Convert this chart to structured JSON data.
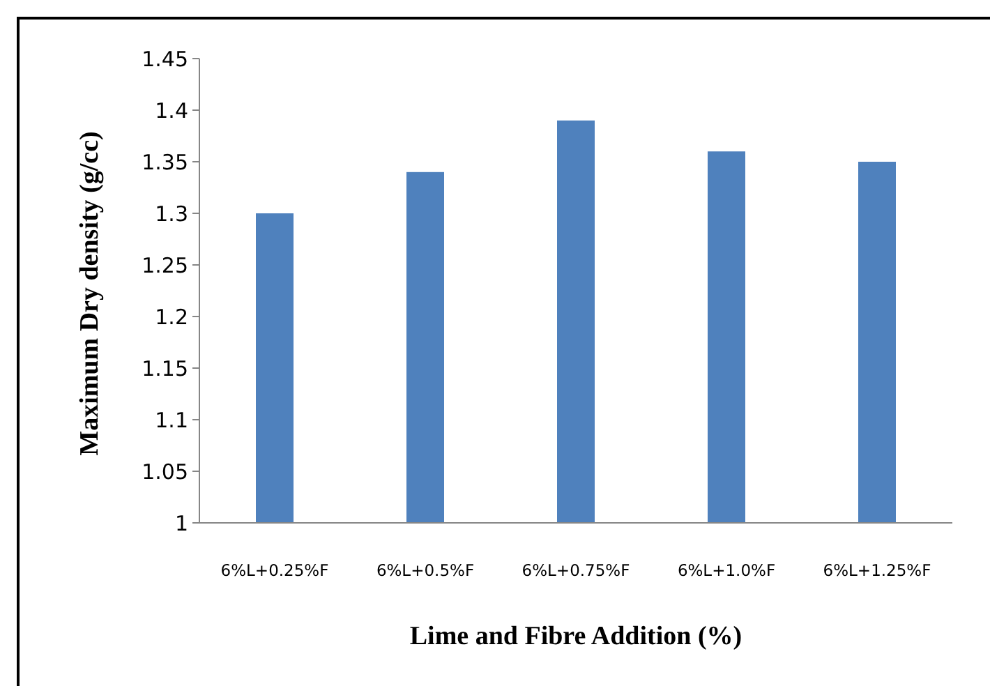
{
  "chart_data": {
    "type": "bar",
    "xlabel": "Lime and Fibre Addition (%)",
    "ylabel": "Maximum Dry density (g/cc)",
    "categories": [
      "6%L+0.25%F",
      "6%L+0.5%F",
      "6%L+0.75%F",
      "6%L+1.0%F",
      "6%L+1.25%F"
    ],
    "values": [
      1.3,
      1.34,
      1.39,
      1.36,
      1.35
    ],
    "color": "#4f81bd",
    "ylim": [
      1,
      1.45
    ],
    "yticks": [
      1,
      1.05,
      1.1,
      1.15,
      1.2,
      1.25,
      1.3,
      1.35,
      1.4,
      1.45
    ]
  }
}
